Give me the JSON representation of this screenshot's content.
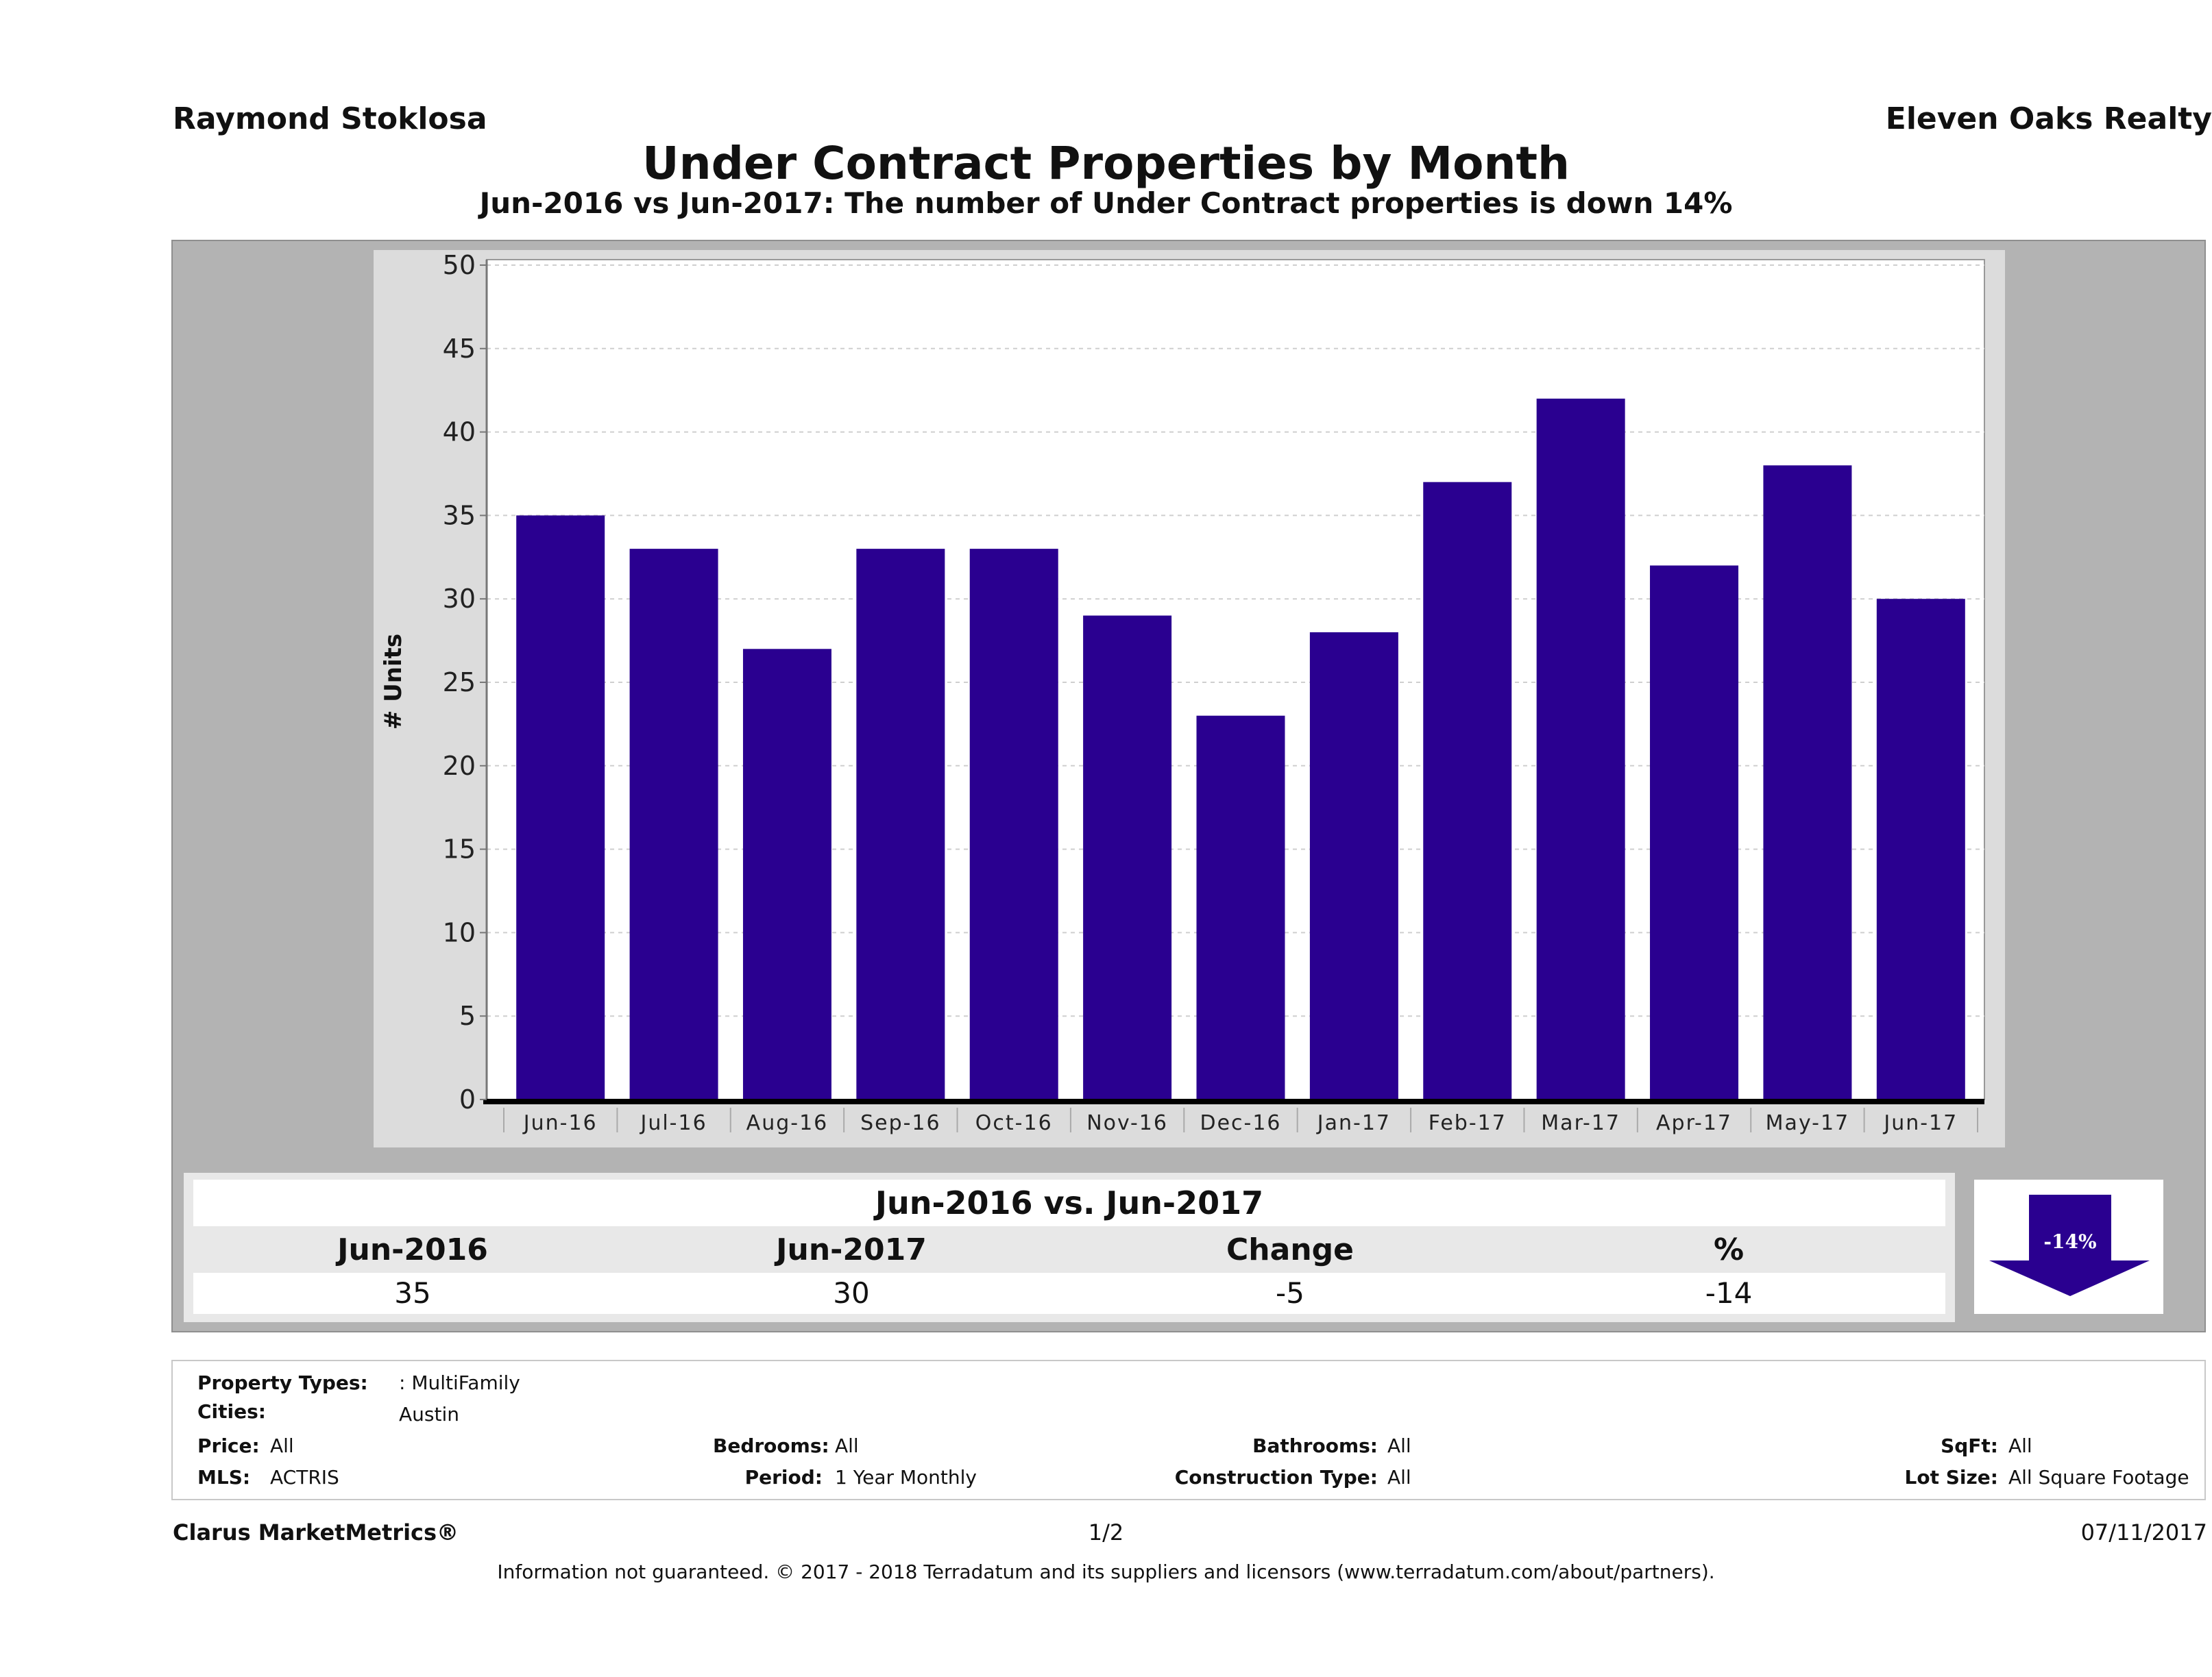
{
  "header": {
    "agent_name": "Raymond Stoklosa",
    "office_name": "Eleven Oaks Realty",
    "title": "Under Contract Properties by Month",
    "subtitle": "Jun-2016 vs Jun-2017: The number of Under Contract  properties is down 14%"
  },
  "chart_data": {
    "type": "bar",
    "title": "Under Contract Properties by Month",
    "xlabel": "",
    "ylabel": "# Units",
    "categories": [
      "Jun-16",
      "Jul-16",
      "Aug-16",
      "Sep-16",
      "Oct-16",
      "Nov-16",
      "Dec-16",
      "Jan-17",
      "Feb-17",
      "Mar-17",
      "Apr-17",
      "May-17",
      "Jun-17"
    ],
    "values": [
      35,
      33,
      27,
      33,
      33,
      29,
      23,
      28,
      37,
      42,
      32,
      38,
      30
    ],
    "ylim": [
      0,
      50
    ],
    "yticks": [
      0,
      5,
      10,
      15,
      20,
      25,
      30,
      35,
      40,
      45,
      50
    ],
    "grid": true,
    "legend": "none",
    "bar_color": "#2a0090"
  },
  "summary": {
    "title": "Jun-2016 vs. Jun-2017",
    "headers": [
      "Jun-2016",
      "Jun-2017",
      "Change",
      "%"
    ],
    "values": [
      "35",
      "30",
      "-5",
      "-14"
    ],
    "arrow_label": "-14%",
    "arrow_direction": "down",
    "arrow_color": "#2a0090"
  },
  "criteria": {
    "property_types_label": "Property Types:",
    "property_types_value": ": MultiFamily",
    "cities_label": "Cities:",
    "cities_value": "Austin",
    "price_label": "Price:",
    "price_value": "All",
    "mls_label": "MLS:",
    "mls_value": "ACTRIS",
    "bedrooms_label": "Bedrooms:",
    "bedrooms_value": "All",
    "period_label": "Period:",
    "period_value": "1 Year Monthly",
    "bathrooms_label": "Bathrooms:",
    "bathrooms_value": "All",
    "construction_label": "Construction Type:",
    "construction_value": "All",
    "sqft_label": "SqFt:",
    "sqft_value": "All",
    "lotsize_label": "Lot Size:",
    "lotsize_value": "All Square Footage"
  },
  "footer": {
    "brand": "Clarus MarketMetrics®",
    "page": "1/2",
    "date": "07/11/2017",
    "disclaimer": "Information not guaranteed. © 2017 - 2018 Terradatum and its suppliers and licensors (www.terradatum.com/about/partners)."
  }
}
